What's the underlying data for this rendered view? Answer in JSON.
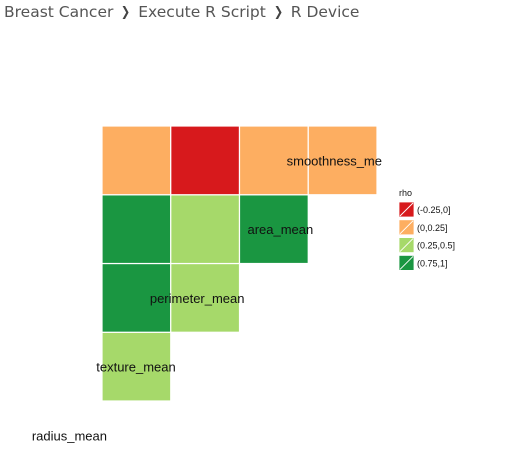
{
  "breadcrumb": {
    "items": [
      "Breast Cancer",
      "Execute R Script",
      "R Device"
    ],
    "separator": "❯"
  },
  "chart_data": {
    "type": "heatmap",
    "variables": [
      "radius_mean",
      "texture_mean",
      "perimeter_mean",
      "area_mean",
      "smoothness_me"
    ],
    "cells": [
      {
        "row": "texture_mean",
        "col": "radius_mean",
        "bin": "(0.25,0.5]"
      },
      {
        "row": "perimeter_mean",
        "col": "radius_mean",
        "bin": "(0.75,1]"
      },
      {
        "row": "perimeter_mean",
        "col": "texture_mean",
        "bin": "(0.25,0.5]"
      },
      {
        "row": "area_mean",
        "col": "radius_mean",
        "bin": "(0.75,1]"
      },
      {
        "row": "area_mean",
        "col": "texture_mean",
        "bin": "(0.25,0.5]"
      },
      {
        "row": "area_mean",
        "col": "perimeter_mean",
        "bin": "(0.75,1]"
      },
      {
        "row": "smoothness_me",
        "col": "radius_mean",
        "bin": "(0,0.25]"
      },
      {
        "row": "smoothness_me",
        "col": "texture_mean",
        "bin": "(-0.25,0]"
      },
      {
        "row": "smoothness_me",
        "col": "perimeter_mean",
        "bin": "(0,0.25]"
      },
      {
        "row": "smoothness_me",
        "col": "area_mean",
        "bin": "(0,0.25]"
      }
    ],
    "legend": {
      "title": "rho",
      "placement": "right",
      "entries": [
        {
          "label": "(-0.25,0]",
          "color": "#d7191c"
        },
        {
          "label": "(0,0.25]",
          "color": "#fdae61"
        },
        {
          "label": "(0.25,0.5]",
          "color": "#a6d96a"
        },
        {
          "label": "(0.75,1]",
          "color": "#1a9641"
        }
      ]
    }
  }
}
